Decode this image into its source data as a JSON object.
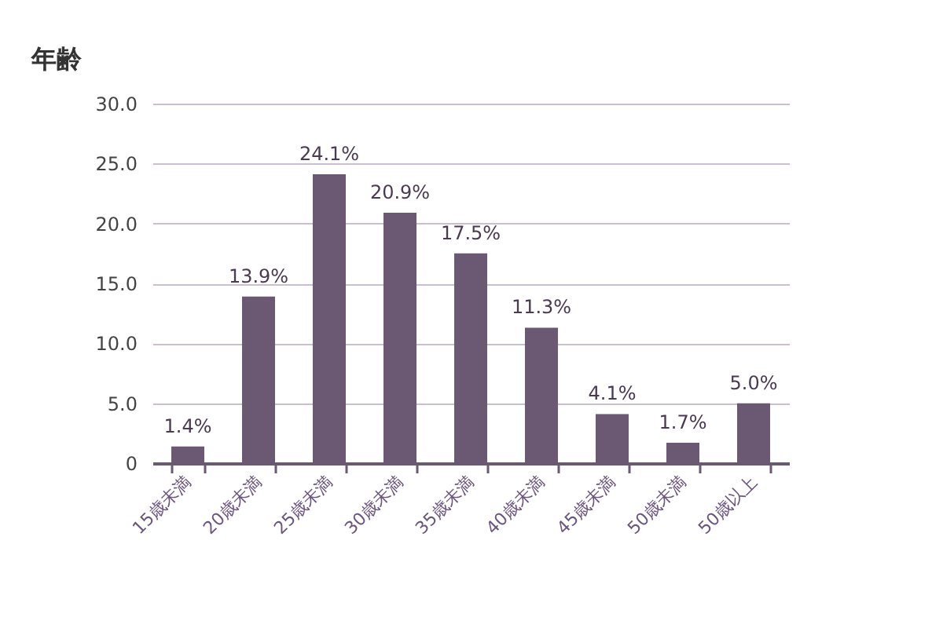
{
  "chart_data": {
    "type": "bar",
    "title": "年齢",
    "categories": [
      "15歳未満",
      "20歳未満",
      "25歳未満",
      "30歳未満",
      "35歳未満",
      "40歳未満",
      "45歳未満",
      "50歳未満",
      "50歳以上"
    ],
    "values": [
      1.4,
      13.9,
      24.1,
      20.9,
      17.5,
      11.3,
      4.1,
      1.7,
      5.0
    ],
    "value_labels": [
      "1.4%",
      "13.9%",
      "24.1%",
      "20.9%",
      "17.5%",
      "11.3%",
      "4.1%",
      "1.7%",
      "5.0%"
    ],
    "color": "#6b5873",
    "ylim": [
      0,
      30
    ],
    "yticks": [
      0,
      {
        "value": 5,
        "label": "5.0"
      },
      {
        "value": 10,
        "label": "10.0"
      },
      {
        "value": 15,
        "label": "15.0"
      },
      {
        "value": 20,
        "label": "20.0"
      },
      {
        "value": 25,
        "label": "25.0"
      },
      {
        "value": 30,
        "label": "30.0"
      }
    ],
    "grid": "y"
  }
}
